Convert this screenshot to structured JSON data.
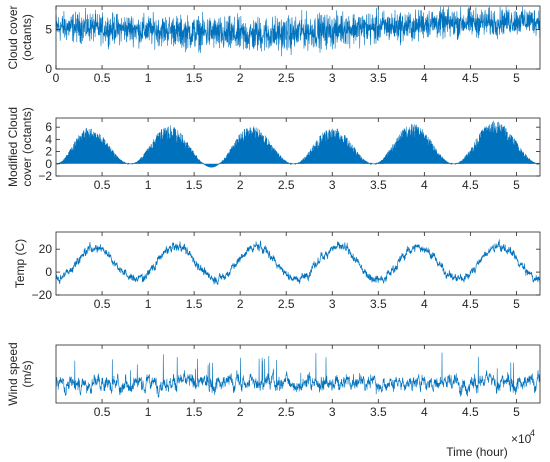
{
  "chart_data": [
    {
      "type": "line",
      "ylabel": [
        "Cloud cover",
        "(octants)"
      ],
      "xlim": [
        0,
        52560
      ],
      "ylim": [
        0,
        8
      ],
      "yticks": [
        0,
        5
      ],
      "xticks": [
        "0",
        "0.5",
        "1",
        "1.5",
        "2",
        "2.5",
        "3",
        "3.5",
        "4",
        "4.5",
        "5"
      ],
      "color": "#0072BD",
      "series": [
        {
          "x_range": [
            0,
            52560
          ],
          "segments_mean": [
            5.3,
            5.1,
            4.9,
            4.6,
            4.3,
            4.4,
            4.8,
            5.2,
            5.4,
            5.8,
            5.9,
            6.1
          ],
          "segments_amplitude": [
            2.5,
            2.5,
            2.6,
            2.8,
            3.0,
            3.0,
            2.9,
            2.8,
            2.6,
            2.5,
            2.4,
            2.3
          ]
        }
      ]
    },
    {
      "type": "area",
      "ylabel": [
        "Modified Cloud",
        "cover (octants)"
      ],
      "xlim": [
        0,
        52560
      ],
      "ylim": [
        -2,
        7.5
      ],
      "yticks": [
        "−2",
        "0",
        "2",
        "4",
        "6"
      ],
      "xticks": [
        "0.5",
        "1",
        "1.5",
        "2",
        "2.5",
        "3",
        "3.5",
        "4",
        "4.5",
        "5"
      ],
      "color": "#0072BD",
      "series": [
        {
          "peaks": [
            {
              "x": 3500,
              "y": 6.0
            },
            {
              "x": 12300,
              "y": 6.3
            },
            {
              "x": 21200,
              "y": 6.2
            },
            {
              "x": 30000,
              "y": 6.0
            },
            {
              "x": 38700,
              "y": 6.6
            },
            {
              "x": 47600,
              "y": 7.1
            }
          ],
          "troughs": [
            {
              "x": 8100,
              "y": 0
            },
            {
              "x": 16900,
              "y": -0.6
            },
            {
              "x": 25800,
              "y": 0
            },
            {
              "x": 34500,
              "y": 0
            },
            {
              "x": 43200,
              "y": 0
            },
            {
              "x": 52560,
              "y": 0
            }
          ]
        }
      ]
    },
    {
      "type": "line",
      "ylabel": [
        "Temp (C)"
      ],
      "xlim": [
        0,
        52560
      ],
      "ylim": [
        -20,
        35
      ],
      "yticks": [
        "−20",
        "0",
        "20"
      ],
      "xticks": [
        "0.5",
        "1",
        "1.5",
        "2",
        "2.5",
        "3",
        "3.5",
        "4",
        "4.5",
        "5"
      ],
      "color": "#0072BD",
      "series": [
        {
          "annual_mean": 8,
          "annual_amplitude": 14,
          "peaks_x": [
            4300,
            13100,
            21900,
            30700,
            39400,
            48200
          ],
          "daily_amplitude": 5
        }
      ]
    },
    {
      "type": "line",
      "ylabel": [
        "Wind speed",
        "(m/s)"
      ],
      "xlim": [
        0,
        52560
      ],
      "ylim": [
        0,
        10
      ],
      "xticks": [
        "0.5",
        "1",
        "1.5",
        "2",
        "2.5",
        "3",
        "3.5",
        "4",
        "4.5",
        "5"
      ],
      "xlabel": "Time (hour)",
      "x_multiplier": "×10",
      "x_multiplier_exp": "4",
      "color": "#0072BD",
      "series": [
        {
          "mean": 3.5,
          "spread": 2.0,
          "max": 9.0
        }
      ]
    }
  ]
}
